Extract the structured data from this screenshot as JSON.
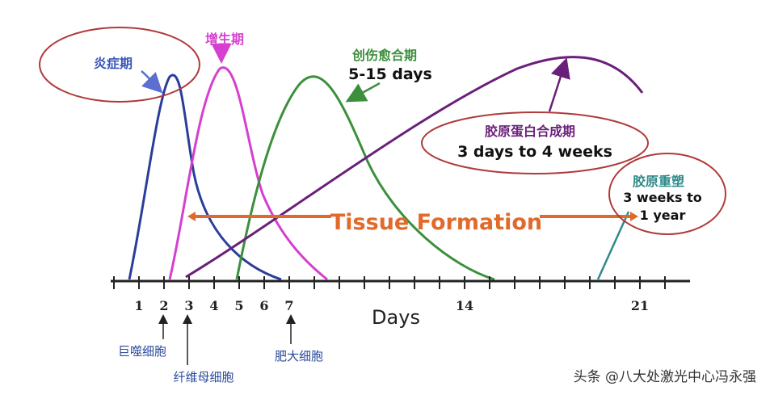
{
  "phases": {
    "inflammation": {
      "label": "炎症期",
      "color": "#2a3d9a"
    },
    "proliferation": {
      "label": "增生期",
      "color": "#d63fcf"
    },
    "wound_closure": {
      "label": "创伤愈合期",
      "duration": "5-15 days",
      "color": "#3c8f3c"
    },
    "collagen_synthesis": {
      "label": "胶原蛋白合成期",
      "duration": "3 days to 4 weeks",
      "color": "#6a1f7a"
    },
    "collagen_remodeling": {
      "label": "胶原重塑",
      "duration_line1": "3 weeks to",
      "duration_line2": "1 year",
      "color": "#2f8a8a"
    }
  },
  "tissue_formation": {
    "label": "Tissue Formation",
    "color": "#e06a2c"
  },
  "axis": {
    "label": "Days",
    "ticks": [
      "1",
      "2",
      "3",
      "4",
      "5",
      "6",
      "7",
      "14",
      "21"
    ]
  },
  "cells": {
    "macrophage": "巨噬细胞",
    "fibroblast": "纤维母细胞",
    "mast_cell": "肥大细胞"
  },
  "watermark": "头条 @八大处激光中心冯永强",
  "colors": {
    "ellipse_outline": "#b03a3a",
    "axis": "#222222"
  }
}
